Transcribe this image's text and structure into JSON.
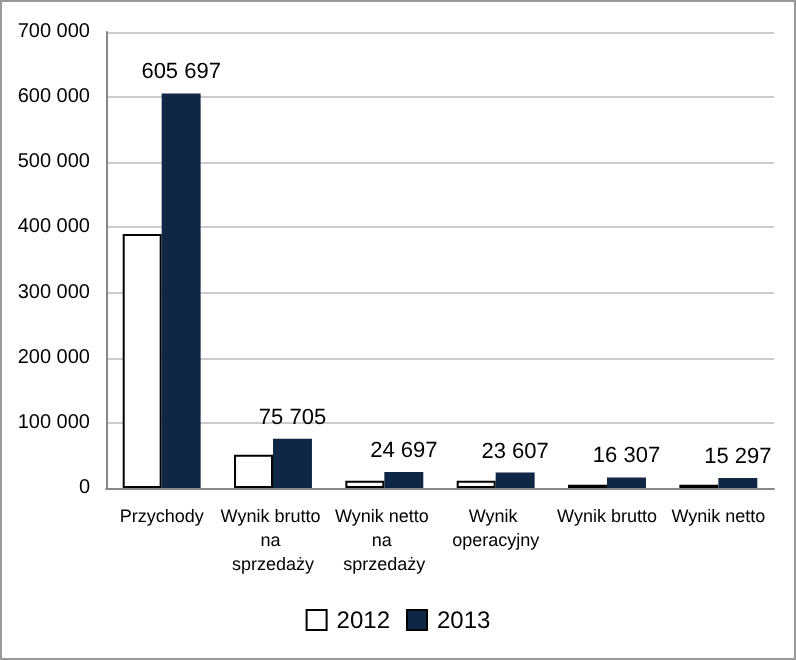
{
  "chart_data": {
    "type": "bar",
    "categories": [
      "Przychody",
      "Wynik brutto na sprzedaży",
      "Wynik netto na sprzedaży",
      "Wynik operacyjny",
      "Wynik brutto",
      "Wynik netto"
    ],
    "series": [
      {
        "name": "2012",
        "color": "#ffffff",
        "values": [
          390000,
          51000,
          11000,
          11000,
          5000,
          5000
        ]
      },
      {
        "name": "2013",
        "color": "#0f2744",
        "values": [
          605697,
          75705,
          24697,
          23607,
          16307,
          15297
        ],
        "value_labels": [
          "605 697",
          "75 705",
          "24 697",
          "23 607",
          "16 307",
          "15 297"
        ]
      }
    ],
    "ylim": [
      0,
      700000
    ],
    "yticks": [
      0,
      {
        "value": 100000,
        "label": "100 000"
      },
      {
        "value": 200000,
        "label": "200 000"
      },
      {
        "value": 300000,
        "label": "300 000"
      },
      {
        "value": 400000,
        "label": "400 000"
      },
      {
        "value": 500000,
        "label": "500 000"
      },
      {
        "value": 600000,
        "label": "600 000"
      },
      {
        "value": 700000,
        "label": "700 000"
      }
    ],
    "grid": "y",
    "legend": "bottom"
  }
}
